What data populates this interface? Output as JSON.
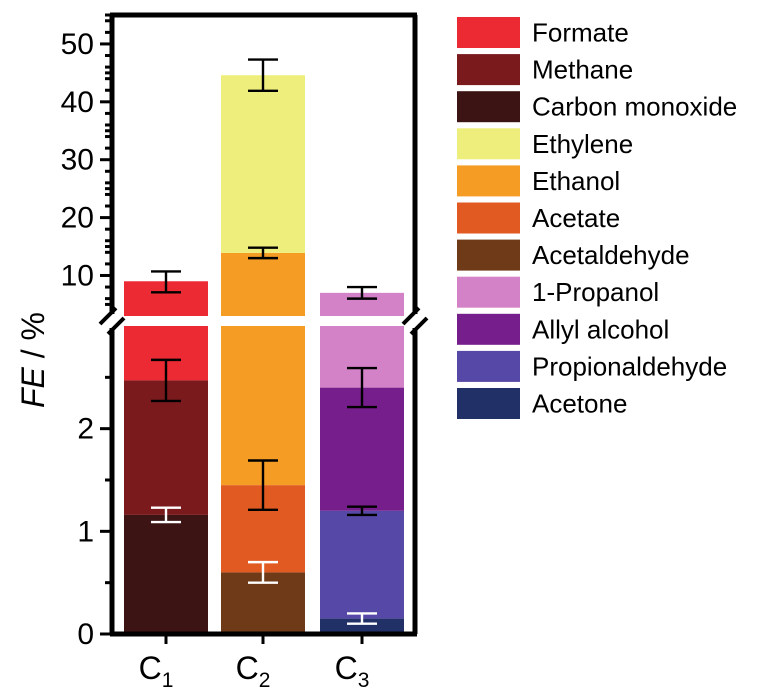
{
  "chart_data": {
    "type": "bar",
    "stacked": true,
    "broken_y_axis": true,
    "ylabel_italic": "FE",
    "ylabel_rest": " / %",
    "categories": [
      {
        "main": "C",
        "sub": "1"
      },
      {
        "main": "C",
        "sub": "2"
      },
      {
        "main": "C",
        "sub": "3"
      }
    ],
    "y_lower": {
      "range": [
        0,
        3
      ],
      "ticks": [
        0,
        1,
        2
      ]
    },
    "y_upper": {
      "range": [
        3,
        55
      ],
      "ticks": [
        10,
        20,
        30,
        40,
        50
      ]
    },
    "series": [
      {
        "name": "Formate",
        "color": "#ec2a33"
      },
      {
        "name": "Methane",
        "color": "#7a1a1c"
      },
      {
        "name": "Carbon monoxide",
        "color": "#3d1414"
      },
      {
        "name": "Ethylene",
        "color": "#eeee7c"
      },
      {
        "name": "Ethanol",
        "color": "#f59c24"
      },
      {
        "name": "Acetate",
        "color": "#e15a22"
      },
      {
        "name": "Acetaldehyde",
        "color": "#6e3a17"
      },
      {
        "name": "1-Propanol",
        "color": "#d482c8"
      },
      {
        "name": "Allyl alcohol",
        "color": "#761e8c"
      },
      {
        "name": "Propionaldehyde",
        "color": "#5548a6"
      },
      {
        "name": "Acetone",
        "color": "#223068"
      }
    ],
    "bars": [
      {
        "category": "C1",
        "segments": [
          {
            "series": "Carbon monoxide",
            "from": 0,
            "to": 1.16
          },
          {
            "series": "Methane",
            "from": 1.16,
            "to": 2.47
          },
          {
            "series": "Formate",
            "from": 2.47,
            "to": 9.0
          }
        ],
        "error_bars": [
          {
            "y": 1.16,
            "err": 0.07,
            "color": "#ffffff"
          },
          {
            "y": 2.47,
            "err": 0.2,
            "color": "#000000"
          },
          {
            "y": 8.9,
            "err": 1.8,
            "color": "#000000"
          }
        ]
      },
      {
        "category": "C2",
        "segments": [
          {
            "series": "Acetaldehyde",
            "from": 0,
            "to": 0.6
          },
          {
            "series": "Acetate",
            "from": 0.6,
            "to": 1.45
          },
          {
            "series": "Ethanol",
            "from": 1.45,
            "to": 13.9
          },
          {
            "series": "Ethylene",
            "from": 13.9,
            "to": 44.6
          }
        ],
        "error_bars": [
          {
            "y": 0.6,
            "err": 0.1,
            "color": "#ffffff"
          },
          {
            "y": 1.45,
            "err": 0.24,
            "color": "#000000"
          },
          {
            "y": 13.9,
            "err": 0.9,
            "color": "#000000"
          },
          {
            "y": 44.6,
            "err": 2.7,
            "color": "#000000"
          }
        ]
      },
      {
        "category": "C3",
        "segments": [
          {
            "series": "Acetone",
            "from": 0,
            "to": 0.15
          },
          {
            "series": "Propionaldehyde",
            "from": 0.15,
            "to": 1.2
          },
          {
            "series": "Allyl alcohol",
            "from": 1.2,
            "to": 2.4
          },
          {
            "series": "1-Propanol",
            "from": 2.4,
            "to": 7.0
          }
        ],
        "error_bars": [
          {
            "y": 0.15,
            "err": 0.05,
            "color": "#ffffff"
          },
          {
            "y": 1.2,
            "err": 0.04,
            "color": "#000000"
          },
          {
            "y": 2.4,
            "err": 0.19,
            "color": "#000000"
          },
          {
            "y": 7.0,
            "err": 1.0,
            "color": "#000000"
          }
        ]
      }
    ]
  }
}
